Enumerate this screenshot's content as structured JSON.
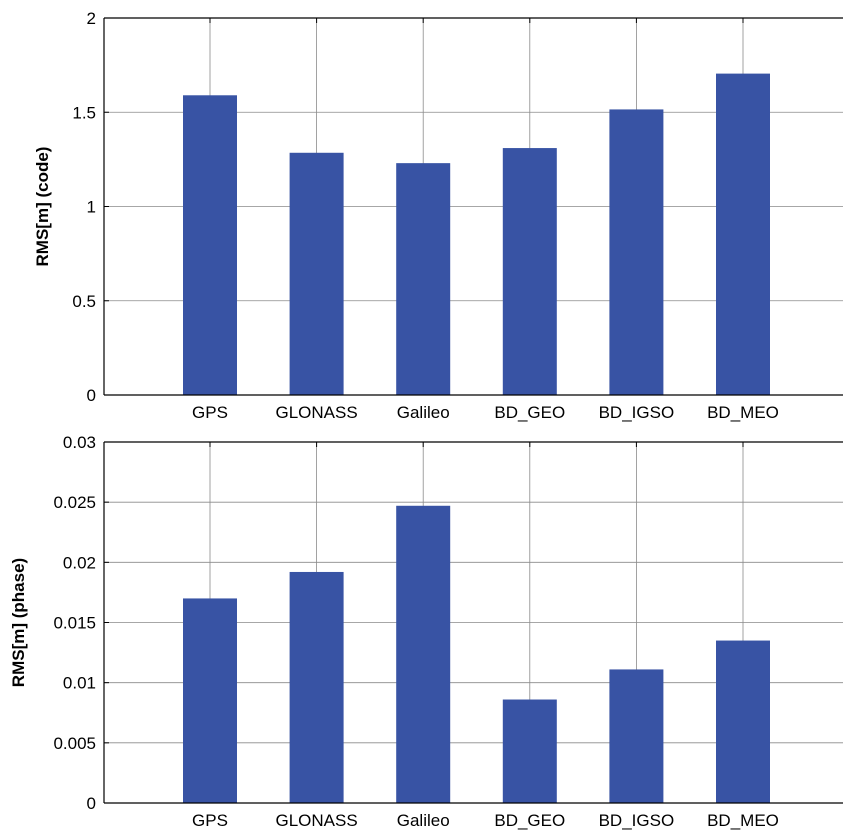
{
  "chart_data": [
    {
      "type": "bar",
      "categories": [
        "GPS",
        "GLONASS",
        "Galileo",
        "BD_GEO",
        "BD_IGSO",
        "BD_MEO"
      ],
      "values": [
        1.59,
        1.285,
        1.23,
        1.31,
        1.515,
        1.705
      ],
      "ylabel": "RMS[m] (code)",
      "xlabel": "",
      "ylim": [
        0,
        2
      ],
      "yticks": [
        0,
        0.5,
        1,
        1.5,
        2
      ],
      "ytick_labels": [
        "0",
        "0.5",
        "1",
        "1.5",
        "2"
      ],
      "grid": true,
      "bar_color": "#3853a4"
    },
    {
      "type": "bar",
      "categories": [
        "GPS",
        "GLONASS",
        "Galileo",
        "BD_GEO",
        "BD_IGSO",
        "BD_MEO"
      ],
      "values": [
        0.017,
        0.0192,
        0.0247,
        0.0086,
        0.0111,
        0.0135
      ],
      "ylabel": "RMS[m] (phase)",
      "xlabel": "",
      "ylim": [
        0,
        0.03
      ],
      "yticks": [
        0,
        0.005,
        0.01,
        0.015,
        0.02,
        0.025,
        0.03
      ],
      "ytick_labels": [
        "0",
        "0.005",
        "0.01",
        "0.015",
        "0.02",
        "0.025",
        "0.03"
      ],
      "grid": true,
      "bar_color": "#3853a4"
    }
  ]
}
